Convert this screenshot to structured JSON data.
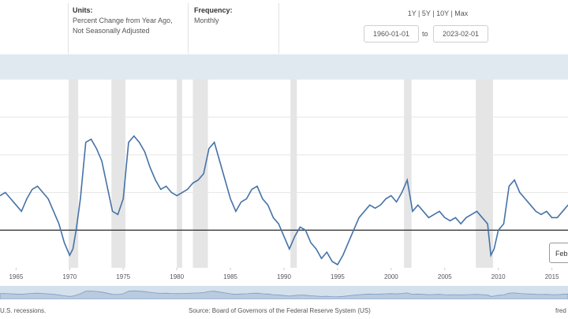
{
  "header": {
    "units": {
      "label": "Units:",
      "line1": "Percent Change from Year Ago,",
      "line2": "Not Seasonally Adjusted"
    },
    "frequency": {
      "label": "Frequency:",
      "value": "Monthly"
    },
    "range_links": [
      "1Y",
      "5Y",
      "10Y",
      "Max"
    ],
    "range_separator": " | ",
    "start_date": "1960-01-01",
    "to_label": "to",
    "end_date": "2023-02-01"
  },
  "tooltip": {
    "text": "Feb"
  },
  "footer": {
    "recession_note": "U.S. recessions.",
    "source": "Source: Board of Governors of the Federal Reserve System (US)",
    "site": "fred"
  },
  "colors": {
    "series": "#4572a7",
    "recession": "#e5e5e5",
    "band": "#e1e9f0",
    "navigator": "#d4e0ec"
  },
  "chart_data": {
    "type": "line",
    "title": "",
    "xlabel": "",
    "ylabel": "",
    "x_ticks": [
      "1965",
      "1970",
      "1975",
      "1980",
      "1985",
      "1990",
      "1995",
      "2000",
      "2005",
      "2010",
      "2015"
    ],
    "xlim": [
      1963.5,
      2016.5
    ],
    "ylim": [
      -6,
      24
    ],
    "grid": true,
    "recessions": [
      [
        1969.9,
        1970.8
      ],
      [
        1973.9,
        1975.2
      ],
      [
        1980.0,
        1980.5
      ],
      [
        1981.5,
        1982.9
      ],
      [
        1990.6,
        1991.2
      ],
      [
        2001.2,
        2001.9
      ],
      [
        2007.9,
        2009.5
      ]
    ],
    "series": [
      {
        "x": [
          1963.5,
          1964,
          1964.5,
          1965,
          1965.5,
          1966,
          1966.5,
          1967,
          1967.5,
          1968,
          1968.5,
          1969,
          1969.5,
          1970,
          1970.3,
          1970.6,
          1971,
          1971.5,
          1972,
          1972.5,
          1973,
          1973.5,
          1974,
          1974.5,
          1975,
          1975.5,
          1976,
          1976.5,
          1977,
          1977.5,
          1978,
          1978.5,
          1979,
          1979.5,
          1980,
          1980.5,
          1981,
          1981.5,
          1982,
          1982.5,
          1983,
          1983.5,
          1984,
          1984.5,
          1985,
          1985.5,
          1986,
          1986.5,
          1987,
          1987.5,
          1988,
          1988.5,
          1989,
          1989.5,
          1990,
          1990.5,
          1991,
          1991.5,
          1992,
          1992.5,
          1993,
          1993.5,
          1994,
          1994.5,
          1995,
          1995.5,
          1996,
          1996.5,
          1997,
          1997.5,
          1998,
          1998.5,
          1999,
          1999.5,
          2000,
          2000.5,
          2001,
          2001.5,
          2002,
          2002.5,
          2003,
          2003.5,
          2004,
          2004.5,
          2005,
          2005.5,
          2006,
          2006.5,
          2007,
          2007.5,
          2008,
          2008.5,
          2009,
          2009.3,
          2009.6,
          2010,
          2010.5,
          2011,
          2011.5,
          2012,
          2012.5,
          2013,
          2013.5,
          2014,
          2014.5,
          2015,
          2015.5,
          2016,
          2016.5
        ],
        "values": [
          5.5,
          6.0,
          5.0,
          4.0,
          3.0,
          5.0,
          6.5,
          7.0,
          6.0,
          5.0,
          3.0,
          1.0,
          -2.0,
          -4.0,
          -3.0,
          0.0,
          5.0,
          14.0,
          14.5,
          13.0,
          11.0,
          7.0,
          3.0,
          2.5,
          5.0,
          14.0,
          15.0,
          14.0,
          12.5,
          10.0,
          8.0,
          6.5,
          7.0,
          6.0,
          5.5,
          6.0,
          6.5,
          7.5,
          8.0,
          9.0,
          13.0,
          14.0,
          11.0,
          8.0,
          5.0,
          3.0,
          4.5,
          5.0,
          6.5,
          7.0,
          5.0,
          4.0,
          2.0,
          1.0,
          -1.0,
          -3.0,
          -1.0,
          0.5,
          0.0,
          -2.0,
          -3.0,
          -4.5,
          -3.5,
          -5.0,
          -5.5,
          -4.0,
          -2.0,
          0.0,
          2.0,
          3.0,
          4.0,
          3.5,
          4.0,
          5.0,
          5.5,
          4.5,
          6.0,
          8.0,
          3.0,
          4.0,
          3.0,
          2.0,
          2.5,
          3.0,
          2.0,
          1.5,
          2.0,
          1.0,
          2.0,
          2.5,
          3.0,
          2.0,
          1.0,
          -4.0,
          -3.0,
          0.0,
          1.0,
          7.0,
          8.0,
          6.0,
          5.0,
          4.0,
          3.0,
          2.5,
          3.0,
          2.0,
          2.0,
          3.0,
          4.0
        ]
      }
    ]
  }
}
